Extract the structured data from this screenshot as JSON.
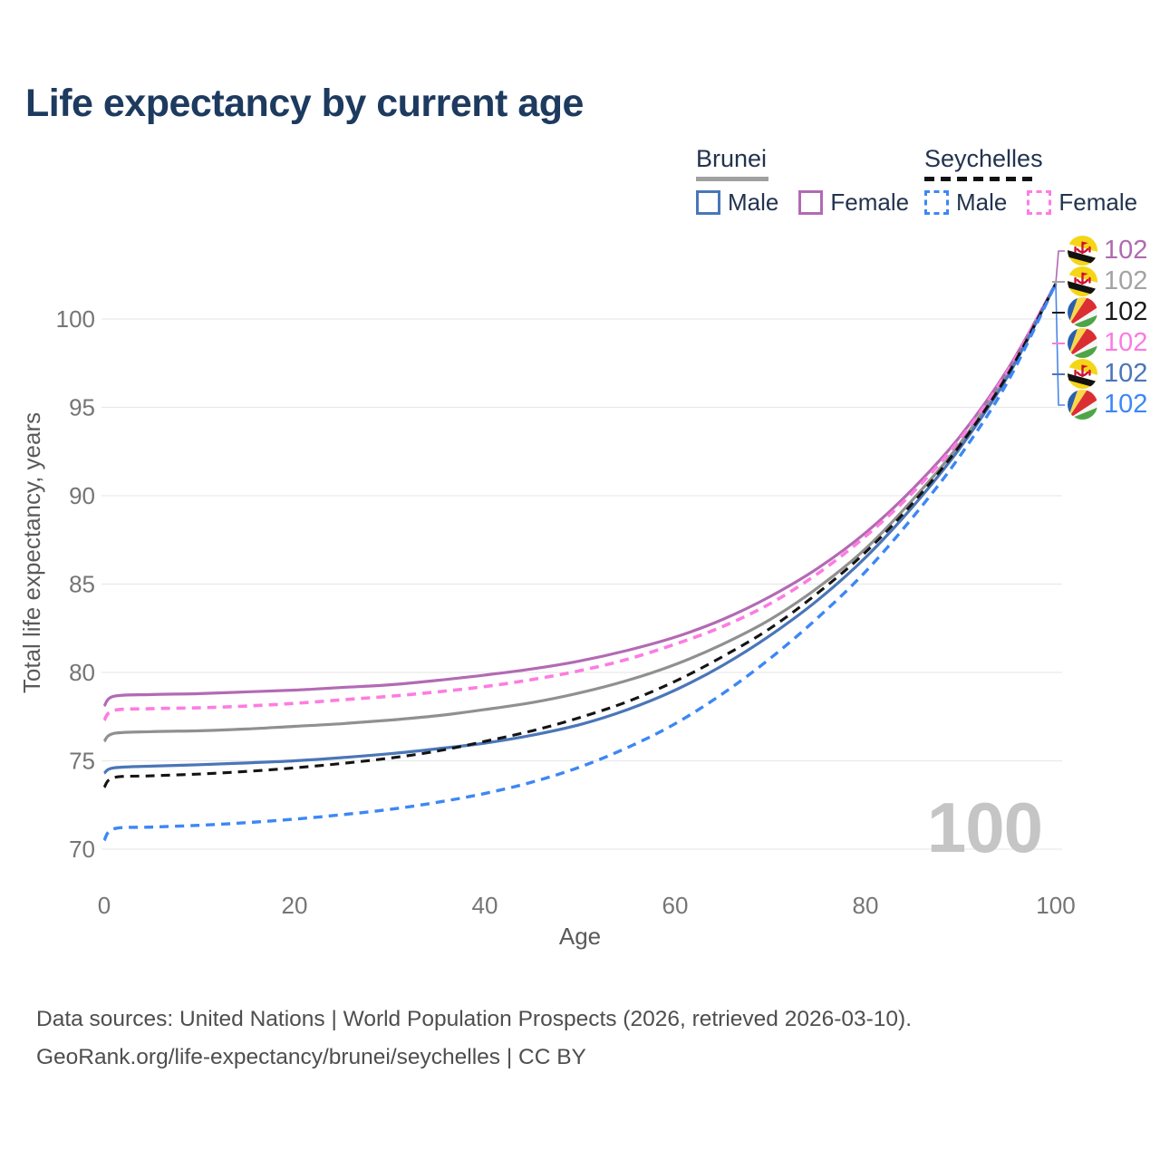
{
  "title": "Life expectancy by current age",
  "legend": {
    "groups": [
      {
        "label": "Brunei",
        "underline": "solid",
        "underline_color": "#a0a0a0",
        "items": [
          {
            "label": "Male",
            "color": "#4a76b8",
            "dashed": false
          },
          {
            "label": "Female",
            "color": "#b36ab3",
            "dashed": false
          }
        ]
      },
      {
        "label": "Seychelles",
        "underline": "dashed",
        "underline_color": "#121212",
        "items": [
          {
            "label": "Male",
            "color": "#3d87f5",
            "dashed": true
          },
          {
            "label": "Female",
            "color": "#fd7ce1",
            "dashed": true
          }
        ]
      }
    ]
  },
  "watermark": "100",
  "footer": {
    "line1": "Data sources: United Nations | World Population Prospects (2026, retrieved 2026-03-10).",
    "line2": "GeoRank.org/life-expectancy/brunei/seychelles | CC BY"
  },
  "chart_data": {
    "type": "line",
    "title": "Life expectancy by current age",
    "xlabel": "Age",
    "ylabel": "Total life expectancy, years",
    "xlim": [
      0,
      100
    ],
    "ylim": [
      69.5,
      103.5
    ],
    "x_ticks": [
      0,
      20,
      40,
      60,
      80,
      100
    ],
    "y_ticks": [
      70,
      75,
      80,
      85,
      90,
      95,
      100
    ],
    "grid": "horizontal",
    "legend_position": "top-right",
    "x": [
      0,
      1,
      5,
      10,
      15,
      20,
      25,
      30,
      35,
      40,
      45,
      50,
      55,
      60,
      65,
      70,
      75,
      80,
      85,
      90,
      95,
      100
    ],
    "series": [
      {
        "key": "brunei_total",
        "name": "Brunei — Total",
        "country": "Brunei",
        "flag": "brunei",
        "color": "#909090",
        "dashed": false,
        "width": 3.2,
        "values": [
          76.1,
          76.55,
          76.65,
          76.7,
          76.8,
          76.95,
          77.1,
          77.3,
          77.55,
          77.9,
          78.3,
          78.85,
          79.55,
          80.45,
          81.6,
          83.0,
          84.8,
          87.0,
          89.8,
          93.0,
          97.0,
          102
        ]
      },
      {
        "key": "brunei_female",
        "name": "Brunei — Female",
        "country": "Brunei",
        "flag": "brunei",
        "color": "#b36ab3",
        "dashed": false,
        "width": 3.2,
        "values": [
          78.1,
          78.65,
          78.75,
          78.8,
          78.9,
          79.0,
          79.15,
          79.3,
          79.55,
          79.85,
          80.2,
          80.65,
          81.25,
          82.0,
          83.0,
          84.3,
          85.9,
          87.9,
          90.4,
          93.4,
          97.2,
          102
        ]
      },
      {
        "key": "seychelles_female",
        "name": "Seychelles — Female",
        "country": "Seychelles",
        "flag": "seychelles",
        "color": "#fd7ce1",
        "dashed": true,
        "width": 3.6,
        "values": [
          77.3,
          77.85,
          77.95,
          78.0,
          78.1,
          78.25,
          78.45,
          78.65,
          78.9,
          79.2,
          79.6,
          80.1,
          80.75,
          81.6,
          82.6,
          83.9,
          85.6,
          87.7,
          90.2,
          93.25,
          97.1,
          102
        ]
      },
      {
        "key": "brunei_male",
        "name": "Brunei — Male",
        "country": "Brunei",
        "flag": "brunei",
        "color": "#4a76b8",
        "dashed": false,
        "width": 3.2,
        "values": [
          74.3,
          74.6,
          74.7,
          74.78,
          74.88,
          75.0,
          75.18,
          75.4,
          75.68,
          76.0,
          76.45,
          77.05,
          77.9,
          79.0,
          80.4,
          82.1,
          84.1,
          86.5,
          89.4,
          92.75,
          96.8,
          102
        ]
      },
      {
        "key": "seychelles_total",
        "name": "Seychelles — Total",
        "country": "Seychelles",
        "flag": "seychelles",
        "color": "#141414",
        "dashed": true,
        "width": 3.1,
        "values": [
          73.5,
          74.05,
          74.15,
          74.25,
          74.4,
          74.6,
          74.85,
          75.15,
          75.55,
          76.1,
          76.7,
          77.45,
          78.35,
          79.5,
          80.9,
          82.5,
          84.5,
          86.8,
          89.6,
          92.9,
          96.9,
          102
        ]
      },
      {
        "key": "seychelles_male",
        "name": "Seychelles — Male",
        "country": "Seychelles",
        "flag": "seychelles",
        "color": "#3d87f5",
        "dashed": true,
        "width": 3.4,
        "values": [
          70.5,
          71.15,
          71.25,
          71.35,
          71.5,
          71.7,
          71.95,
          72.25,
          72.65,
          73.15,
          73.8,
          74.65,
          75.75,
          77.1,
          78.8,
          80.8,
          83.1,
          85.7,
          88.8,
          92.3,
          96.5,
          102
        ]
      }
    ],
    "end_labels": [
      {
        "series": "brunei_female",
        "flag": "brunei",
        "color": "#b06ab0",
        "value": "102"
      },
      {
        "series": "brunei_total",
        "flag": "brunei",
        "color": "#a3a3a3",
        "value": "102"
      },
      {
        "series": "seychelles_total",
        "flag": "seychelles",
        "color": "#1a1a1a",
        "value": "102"
      },
      {
        "series": "seychelles_female",
        "flag": "seychelles",
        "color": "#fb7be0",
        "value": "102"
      },
      {
        "series": "brunei_male",
        "flag": "brunei",
        "color": "#4a76b8",
        "value": "102"
      },
      {
        "series": "seychelles_male",
        "flag": "seychelles",
        "color": "#3d87f5",
        "value": "102"
      }
    ]
  }
}
